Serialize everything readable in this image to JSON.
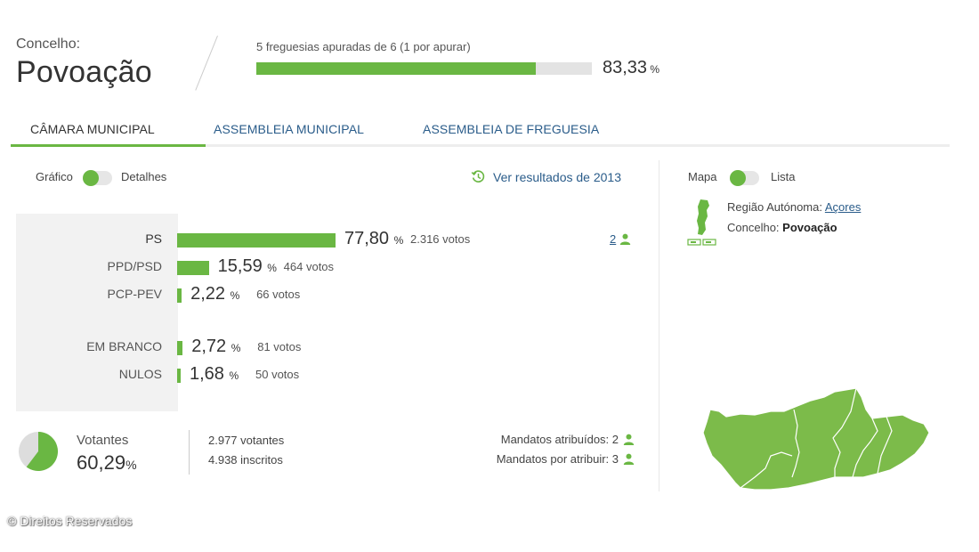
{
  "header": {
    "concelho_label": "Concelho:",
    "concelho_name": "Povoação",
    "freguesias_text": "5 freguesias apuradas de 6 (1 por apurar)",
    "progress_fraction": 0.8333,
    "progress_value": "83,33",
    "percent_sign": "%"
  },
  "tabs": [
    {
      "label": "CÂMARA MUNICIPAL",
      "active": true
    },
    {
      "label": "ASSEMBLEIA MUNICIPAL",
      "active": false
    },
    {
      "label": "ASSEMBLEIA DE FREGUESIA",
      "active": false
    }
  ],
  "view_toggle": {
    "left": "Gráfico",
    "right": "Detalhes"
  },
  "previous_results_link": "Ver resultados de 2013",
  "results": [
    {
      "party": "PS",
      "percent": 77.8,
      "percent_text": "77,80",
      "votes_text": "2.316 votos"
    },
    {
      "party": "PPD/PSD",
      "percent": 15.59,
      "percent_text": "15,59",
      "votes_text": "464 votos"
    },
    {
      "party": "PCP-PEV",
      "percent": 2.22,
      "percent_text": "2,22",
      "votes_text": "66 votos"
    },
    {
      "party": "EM BRANCO",
      "percent": 2.72,
      "percent_text": "2,72",
      "votes_text": "81 votos"
    },
    {
      "party": "NULOS",
      "percent": 1.68,
      "percent_text": "1,68",
      "votes_text": "50 votos"
    }
  ],
  "ps_mandates": "2",
  "turnout": {
    "label": "Votantes",
    "percent": 60.29,
    "percent_text": "60,29",
    "votantes_text": "2.977 votantes",
    "inscritos_text": "4.938 inscritos"
  },
  "mandates": {
    "atribuidos": "Mandatos atribuídos: 2",
    "por_atribuir": "Mandatos por atribuir: 3"
  },
  "map_toggle": {
    "left": "Mapa",
    "right": "Lista"
  },
  "region": {
    "label": "Região Autónoma:",
    "link": "Açores",
    "concelho_label": "Concelho:",
    "concelho_value": "Povoação"
  },
  "colors": {
    "accent": "#6ab743",
    "link": "#2a5c8a",
    "map": "#7cbb4a"
  },
  "copyright": "© Direitos Reservados"
}
